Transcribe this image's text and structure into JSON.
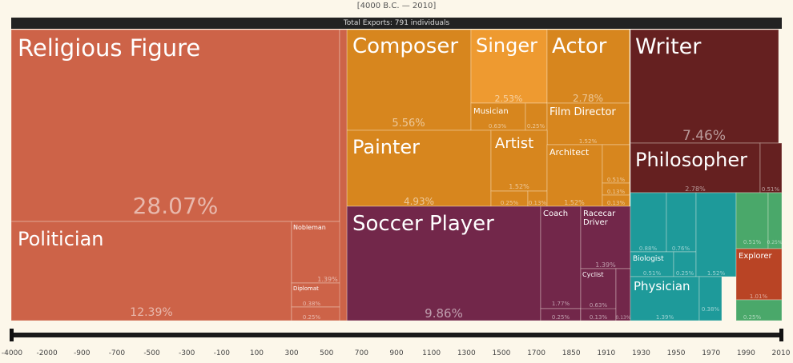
{
  "header": {
    "date_range": "[4000 B.C. — 2010]",
    "total_label": "Total Exports: 791 individuals"
  },
  "colors": {
    "religious": "#cd6348",
    "arts": "#d7861e",
    "singer": "#ee9a30",
    "writer": "#652020",
    "sports": "#72274a",
    "science": "#1e9a9a",
    "green": "#4aa86a",
    "explorer": "#b94425"
  },
  "chart_data": {
    "type": "treemap",
    "title": "",
    "tiles": [
      {
        "label": "Religious Figure",
        "pct": "28.07%",
        "value": 28.07
      },
      {
        "label": "Politician",
        "pct": "12.39%",
        "value": 12.39
      },
      {
        "label": "Nobleman",
        "pct": "1.39%",
        "value": 1.39
      },
      {
        "label": "Diplomat",
        "pct": "0.38%",
        "value": 0.38
      },
      {
        "label": "",
        "pct": "0.25%",
        "value": 0.25
      },
      {
        "label": "Composer",
        "pct": "5.56%",
        "value": 5.56
      },
      {
        "label": "Singer",
        "pct": "2.53%",
        "value": 2.53
      },
      {
        "label": "Musician",
        "pct": "0.63%",
        "value": 0.63
      },
      {
        "label": "",
        "pct": "0.25%",
        "value": 0.25
      },
      {
        "label": "Actor",
        "pct": "2.78%",
        "value": 2.78
      },
      {
        "label": "Film Director",
        "pct": "1.52%",
        "value": 1.52
      },
      {
        "label": "Painter",
        "pct": "4.93%",
        "value": 4.93
      },
      {
        "label": "Artist",
        "pct": "1.52%",
        "value": 1.52
      },
      {
        "label": "",
        "pct": "0.25%",
        "value": 0.25
      },
      {
        "label": "",
        "pct": "0.13%",
        "value": 0.13
      },
      {
        "label": "Architect",
        "pct": "1.52%",
        "value": 1.52
      },
      {
        "label": "",
        "pct": "0.51%",
        "value": 0.51
      },
      {
        "label": "",
        "pct": "0.13%",
        "value": 0.13
      },
      {
        "label": "",
        "pct": "0.13%",
        "value": 0.13
      },
      {
        "label": "Soccer Player",
        "pct": "9.86%",
        "value": 9.86
      },
      {
        "label": "Coach",
        "pct": "1.77%",
        "value": 1.77
      },
      {
        "label": "",
        "pct": "0.25%",
        "value": 0.25
      },
      {
        "label": "Racecar Driver",
        "pct": "1.39%",
        "value": 1.39
      },
      {
        "label": "Cyclist",
        "pct": "0.63%",
        "value": 0.63
      },
      {
        "label": "",
        "pct": "0.13%",
        "value": 0.13
      },
      {
        "label": "",
        "pct": "0.13%",
        "value": 0.13
      },
      {
        "label": "Writer",
        "pct": "7.46%",
        "value": 7.46
      },
      {
        "label": "Philosopher",
        "pct": "2.78%",
        "value": 2.78
      },
      {
        "label": "",
        "pct": "0.51%",
        "value": 0.51
      },
      {
        "label": "",
        "pct": "0.88%",
        "value": 0.88
      },
      {
        "label": "",
        "pct": "0.76%",
        "value": 0.76
      },
      {
        "label": "Biologist",
        "pct": "0.51%",
        "value": 0.51
      },
      {
        "label": "",
        "pct": "0.25%",
        "value": 0.25
      },
      {
        "label": "",
        "pct": "1.52%",
        "value": 1.52
      },
      {
        "label": "Physician",
        "pct": "1.39%",
        "value": 1.39
      },
      {
        "label": "",
        "pct": "0.38%",
        "value": 0.38
      },
      {
        "label": "",
        "pct": "0.51%",
        "value": 0.51
      },
      {
        "label": "",
        "pct": "0.25%",
        "value": 0.25
      },
      {
        "label": "Explorer",
        "pct": "1.01%",
        "value": 1.01
      },
      {
        "label": "",
        "pct": "0.25%",
        "value": 0.25
      }
    ]
  },
  "timeline": {
    "ticks": [
      "-4000",
      "-2000",
      "-900",
      "-700",
      "-500",
      "-300",
      "-100",
      "100",
      "300",
      "500",
      "700",
      "900",
      "1100",
      "1300",
      "1500",
      "1700",
      "1850",
      "1910",
      "1930",
      "1950",
      "1970",
      "1990",
      "2010"
    ]
  }
}
